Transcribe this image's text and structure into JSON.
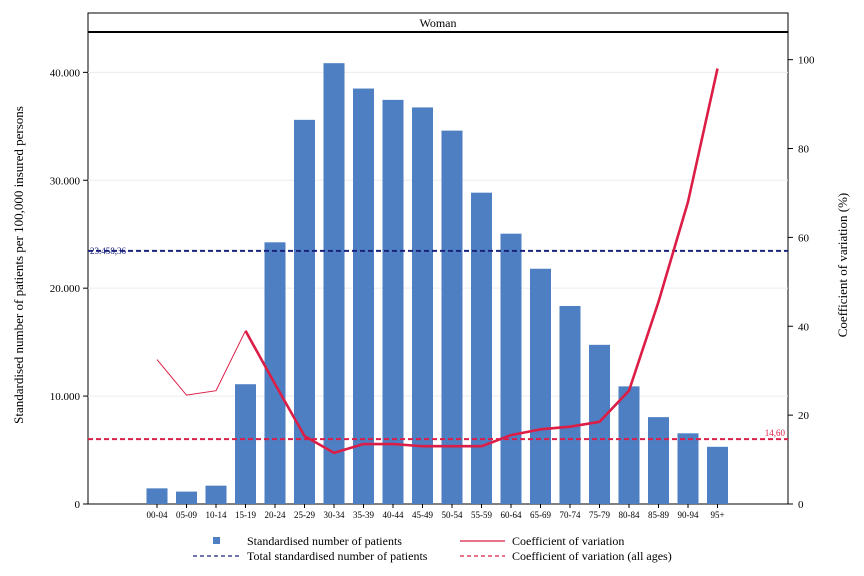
{
  "chart_data": {
    "type": "bar",
    "panel_title": "Woman",
    "categories": [
      "00-04",
      "05-09",
      "10-14",
      "15-19",
      "20-24",
      "25-29",
      "30-34",
      "35-39",
      "40-44",
      "45-49",
      "50-54",
      "55-59",
      "60-64",
      "65-69",
      "70-74",
      "75-79",
      "80-84",
      "85-89",
      "90-94",
      "95+"
    ],
    "bars": {
      "name": "Standardised number of patients",
      "color": "#4e7fc3",
      "values": [
        1450,
        1150,
        1700,
        11100,
        24250,
        35600,
        40850,
        38500,
        37450,
        36750,
        34600,
        28850,
        25050,
        21800,
        18350,
        14750,
        10900,
        8050,
        6550,
        5300
      ]
    },
    "cv_line": {
      "name": "Coefficient of variation",
      "color": "#dc1e46",
      "values": [
        32.5,
        24.5,
        25.5,
        39,
        27,
        15.3,
        11.5,
        13.5,
        13.5,
        13,
        13,
        13,
        15.5,
        16.8,
        17.4,
        18.5,
        25.5,
        45.5,
        68,
        98
      ],
      "thin_segment_end_index": 3
    },
    "total_reference": {
      "name": "Total standardised number of patients",
      "value": 23458.36,
      "label": "23.458,36",
      "color": "#1a237e"
    },
    "cv_reference": {
      "name": "Coefficient of variation (all ages)",
      "value": 14.6,
      "label": "14,60",
      "color": "#dc1e46"
    },
    "left_axis": {
      "label": "Standardised number of patients per 100,000 insured persons",
      "ticks": [
        0,
        10000,
        20000,
        30000,
        40000
      ],
      "tick_labels": [
        "0",
        "10.000",
        "20.000",
        "30.000",
        "40.000"
      ],
      "range": [
        0,
        45500
      ]
    },
    "right_axis": {
      "label": "Coefficient of variation (%)",
      "ticks": [
        0,
        20,
        40,
        60,
        80,
        100
      ],
      "tick_labels": [
        "0",
        "20",
        "40",
        "60",
        "80",
        "100"
      ],
      "range": [
        0,
        110.5
      ]
    },
    "grid": true,
    "legend_position": "bottom"
  }
}
